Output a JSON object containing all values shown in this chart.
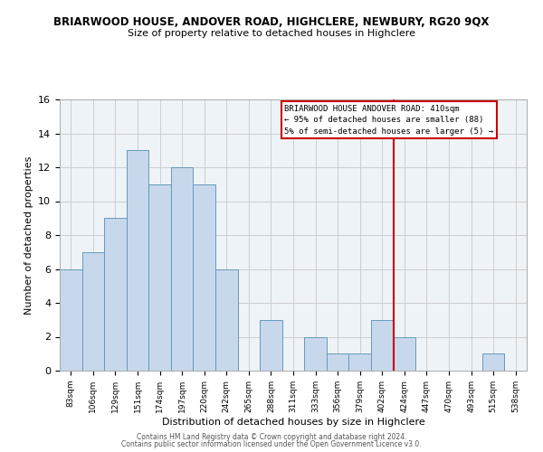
{
  "title": "BRIARWOOD HOUSE, ANDOVER ROAD, HIGHCLERE, NEWBURY, RG20 9QX",
  "subtitle": "Size of property relative to detached houses in Highclere",
  "xlabel": "Distribution of detached houses by size in Highclere",
  "ylabel": "Number of detached properties",
  "bin_labels": [
    "83sqm",
    "106sqm",
    "129sqm",
    "151sqm",
    "174sqm",
    "197sqm",
    "220sqm",
    "242sqm",
    "265sqm",
    "288sqm",
    "311sqm",
    "333sqm",
    "356sqm",
    "379sqm",
    "402sqm",
    "424sqm",
    "447sqm",
    "470sqm",
    "493sqm",
    "515sqm",
    "538sqm"
  ],
  "bar_heights": [
    6,
    7,
    9,
    13,
    11,
    12,
    11,
    6,
    0,
    3,
    0,
    2,
    1,
    1,
    3,
    2,
    0,
    0,
    0,
    1,
    0
  ],
  "bar_color": "#c8d8ec",
  "bar_edge_color": "#6699bb",
  "ylim": [
    0,
    16
  ],
  "yticks": [
    0,
    2,
    4,
    6,
    8,
    10,
    12,
    14,
    16
  ],
  "vline_x_index": 14,
  "vline_color": "#cc0000",
  "annotation_line1": "BRIARWOOD HOUSE ANDOVER ROAD: 410sqm",
  "annotation_line2": "← 95% of detached houses are smaller (88)",
  "annotation_line3": "5% of semi-detached houses are larger (5) →",
  "annotation_box_color": "#cc0000",
  "footer_line1": "Contains HM Land Registry data © Crown copyright and database right 2024.",
  "footer_line2": "Contains public sector information licensed under the Open Government Licence v3.0.",
  "background_color": "#ffffff",
  "plot_bg_color": "#eef3f8",
  "grid_color": "#c8c8c8"
}
